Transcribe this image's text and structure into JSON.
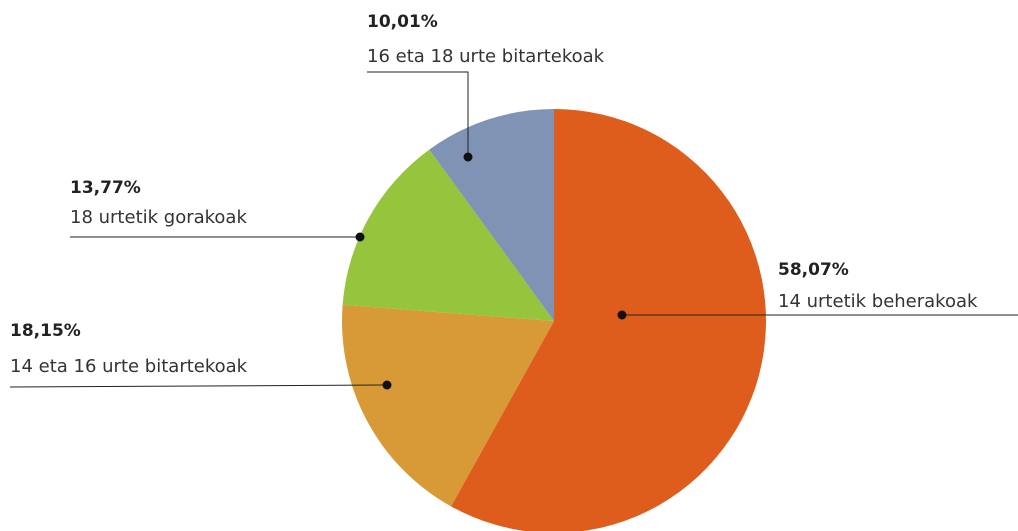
{
  "chart_data": {
    "type": "pie",
    "categories": [
      "14 urtetik beherakoak",
      "14 eta 16 urte bitartekoak",
      "18 urtetik gorakoak",
      "16 eta 18 urte bitartekoak"
    ],
    "values": [
      58.07,
      18.15,
      13.77,
      10.01
    ],
    "value_labels": [
      "58,07%",
      "18,15%",
      "13,77%",
      "10,01%"
    ],
    "colors": [
      "#de5c1c",
      "#d89a36",
      "#95c43d",
      "#7f93b5"
    ]
  }
}
